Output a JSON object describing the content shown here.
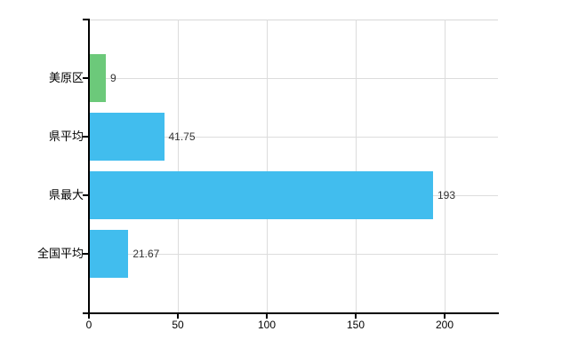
{
  "chart_data": {
    "type": "bar",
    "orientation": "horizontal",
    "title": "",
    "xlabel": "",
    "ylabel": "",
    "categories": [
      "美原区",
      "県平均",
      "県最大",
      "全国平均"
    ],
    "values": [
      9,
      41.75,
      193,
      21.67
    ],
    "value_labels": [
      "9",
      "41.75",
      "193",
      "21.67"
    ],
    "bar_colors": [
      "#6cc97a",
      "#41bdee",
      "#41bdee",
      "#41bdee"
    ],
    "x_ticks": [
      0,
      50,
      100,
      150,
      200
    ],
    "x_tick_labels": [
      "0",
      "50",
      "100",
      "150",
      "200"
    ],
    "xlim": [
      0,
      230
    ],
    "grid": true,
    "legend": false,
    "colors": {
      "bar_green": "#6cc97a",
      "bar_cyan": "#41bdee",
      "grid_line": "#dcdcdc",
      "axis": "#000000",
      "value_text": "#333333",
      "label_text": "#000000",
      "background": "#ffffff"
    }
  }
}
